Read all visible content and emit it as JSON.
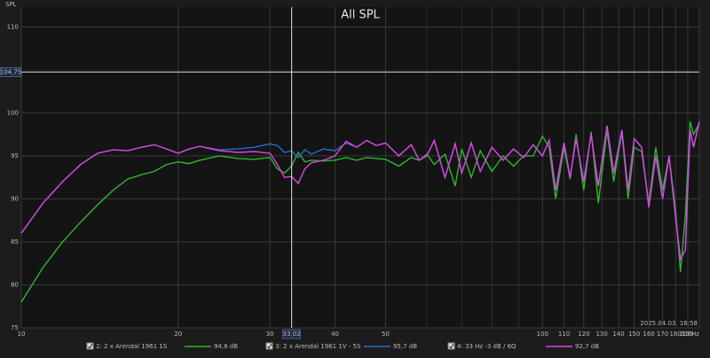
{
  "chart_data": {
    "type": "line",
    "log_x": true,
    "grid": true,
    "title": "All SPL",
    "y_label": "SPL",
    "timestamp": "2025.04.03. 16:58",
    "xlim": [
      10,
      200
    ],
    "ylim": [
      75,
      112.3
    ],
    "xticks": [
      10,
      20,
      30,
      40,
      50,
      100,
      110,
      120,
      130,
      140,
      150,
      160,
      170,
      180,
      190,
      {
        "value": 200,
        "label": "200Hz"
      }
    ],
    "x_minor_ticks": [
      60,
      70,
      80,
      90
    ],
    "yticks": [
      75,
      80,
      85,
      90,
      95,
      100,
      110
    ],
    "cursor_y": {
      "value": 104.75,
      "label": "104,75"
    },
    "cursor_x": {
      "value": 33.02,
      "label": "33,02"
    },
    "x": [
      10,
      11,
      12,
      13,
      14,
      15,
      16,
      17,
      18,
      19,
      20,
      21,
      22,
      24,
      26,
      28,
      30,
      31,
      32,
      33,
      34,
      35,
      36,
      38,
      40,
      42,
      44,
      46,
      48,
      50,
      53,
      56,
      58,
      60,
      62,
      65,
      68,
      70,
      73,
      76,
      80,
      84,
      88,
      92,
      96,
      100,
      103,
      106,
      110,
      113,
      116,
      120,
      124,
      128,
      133,
      137,
      142,
      146,
      150,
      155,
      160,
      165,
      170,
      175,
      180,
      184,
      188,
      192,
      195,
      200
    ],
    "series": [
      {
        "name": "2: 2 x Arendal 1961 1S",
        "level_label": "94,8 dB",
        "color": "#2fb52f",
        "values": [
          78,
          82,
          85,
          87.3,
          89.3,
          91,
          92.3,
          92.8,
          93.2,
          94,
          94.3,
          94.1,
          94.5,
          95,
          94.7,
          94.6,
          94.8,
          93.5,
          93,
          93.8,
          95.4,
          94.3,
          94.5,
          94.4,
          94.5,
          94.8,
          94.5,
          94.8,
          94.7,
          94.6,
          93.8,
          94.8,
          94.5,
          95.2,
          94,
          95.2,
          91.5,
          95.8,
          92.5,
          95.6,
          93.2,
          95,
          93.8,
          95,
          95,
          97.3,
          96,
          90,
          96,
          92.3,
          97.5,
          91,
          97.8,
          89.5,
          98,
          92,
          97.8,
          90,
          96,
          95.5,
          89.5,
          96,
          91,
          95,
          88.8,
          81.5,
          88,
          99,
          97.5,
          98.8
        ]
      },
      {
        "name": "3: 2 x Arendal 1961 1V - 5S",
        "level_label": "95,7 dB",
        "color": "#2a6ad8",
        "values": [
          86,
          89.5,
          92,
          94,
          95.3,
          95.7,
          95.6,
          96,
          96.3,
          95.8,
          95.3,
          95.8,
          96.1,
          95.7,
          95.8,
          96,
          96.4,
          96.2,
          95.4,
          95.6,
          94.8,
          95.7,
          95.2,
          95.8,
          95.6,
          96.5,
          96,
          96.8,
          96.2,
          96.5,
          95,
          96.3,
          94.5,
          95,
          96.8,
          92.5,
          96.4,
          93,
          96.5,
          93.2,
          96,
          94.5,
          95.8,
          94.8,
          96.3,
          95,
          96.8,
          91,
          96.5,
          92.5,
          97,
          92,
          97.5,
          91.5,
          98.5,
          93,
          98,
          91,
          97,
          96,
          89,
          95,
          90,
          95,
          88,
          83,
          84,
          98,
          96,
          99
        ]
      },
      {
        "name": "4: 33 Hz -3 dB / 6Q",
        "level_label": "92,7 dB",
        "color": "#dd44dd",
        "values": [
          86,
          89.5,
          92,
          94,
          95.3,
          95.7,
          95.6,
          96,
          96.3,
          95.8,
          95.3,
          95.8,
          96.1,
          95.6,
          95.4,
          95.5,
          95.3,
          94,
          92.5,
          92.6,
          91.8,
          93.5,
          94.2,
          94.5,
          95,
          96.7,
          96,
          96.8,
          96.2,
          96.5,
          95,
          96.3,
          94.5,
          95,
          96.8,
          92.5,
          96.4,
          93,
          96.5,
          93.2,
          96,
          94.5,
          95.8,
          94.8,
          96.3,
          95,
          96.8,
          91,
          96.5,
          92.5,
          97,
          92,
          97.5,
          91.5,
          98.5,
          93,
          98,
          91,
          97,
          96,
          89,
          95,
          90,
          95,
          88,
          83,
          84,
          98,
          96,
          99
        ]
      }
    ]
  }
}
